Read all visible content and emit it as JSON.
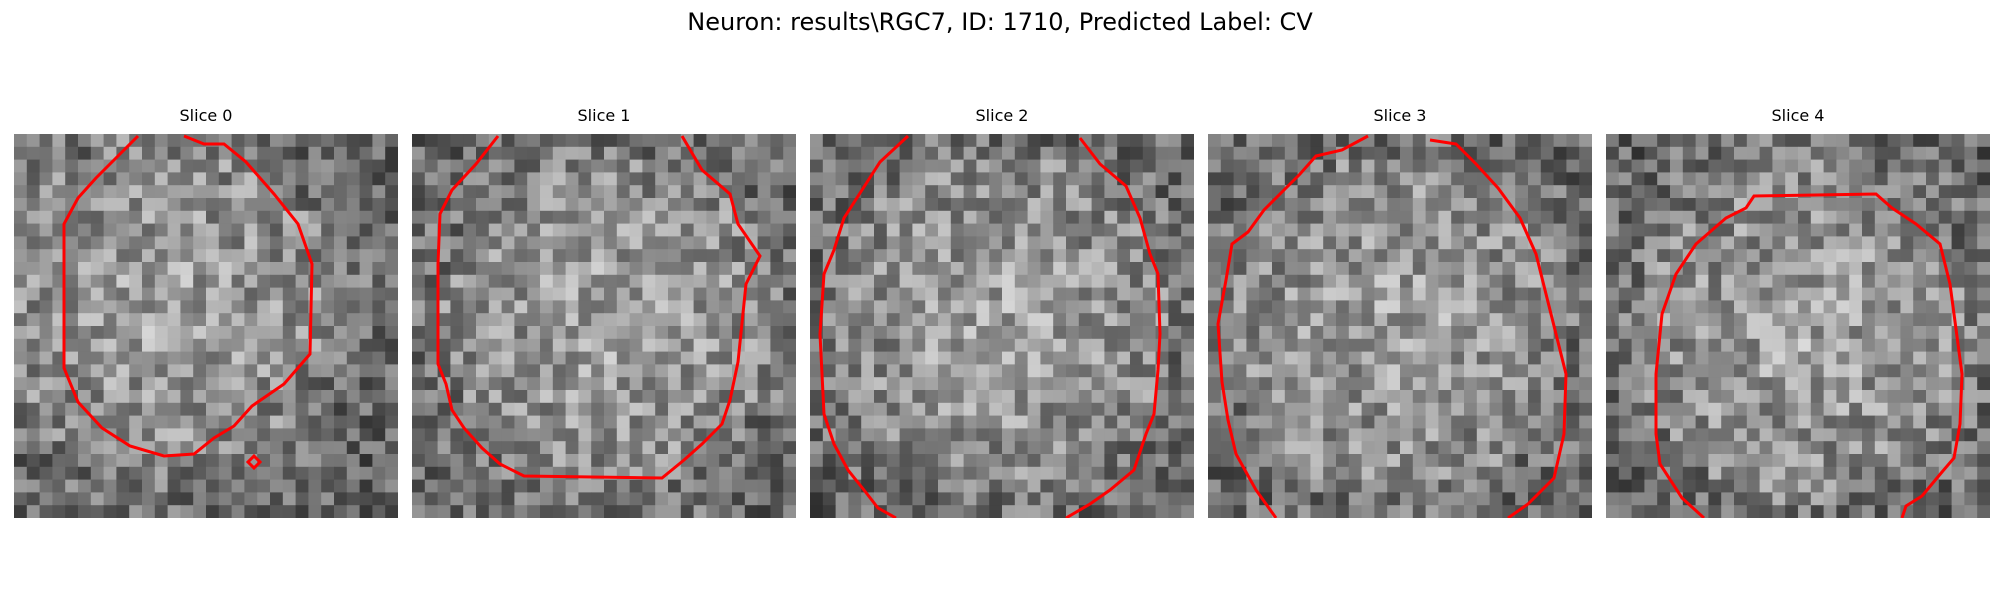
{
  "figure": {
    "title": "Neuron: results\\RGC7, ID: 1710, Predicted Label: CV"
  },
  "panels": [
    {
      "title": "Slice 0"
    },
    {
      "title": "Slice 1"
    },
    {
      "title": "Slice 2"
    },
    {
      "title": "Slice 3"
    },
    {
      "title": "Slice 4"
    }
  ],
  "colors": {
    "contour": "#ff0000",
    "background": "#ffffff"
  }
}
